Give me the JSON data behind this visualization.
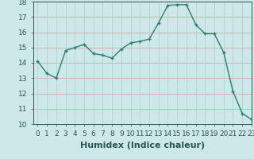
{
  "x": [
    0,
    1,
    2,
    3,
    4,
    5,
    6,
    7,
    8,
    9,
    10,
    11,
    12,
    13,
    14,
    15,
    16,
    17,
    18,
    19,
    20,
    21,
    22,
    23
  ],
  "y": [
    14.1,
    13.3,
    13.0,
    14.8,
    15.0,
    15.2,
    14.6,
    14.5,
    14.3,
    14.9,
    15.3,
    15.4,
    15.55,
    16.6,
    17.75,
    17.8,
    17.8,
    16.5,
    15.9,
    15.9,
    14.7,
    12.15,
    10.7,
    10.3
  ],
  "xlabel": "Humidex (Indice chaleur)",
  "ylim": [
    10,
    18
  ],
  "xlim": [
    -0.5,
    23
  ],
  "yticks": [
    10,
    11,
    12,
    13,
    14,
    15,
    16,
    17,
    18
  ],
  "xticks": [
    0,
    1,
    2,
    3,
    4,
    5,
    6,
    7,
    8,
    9,
    10,
    11,
    12,
    13,
    14,
    15,
    16,
    17,
    18,
    19,
    20,
    21,
    22,
    23
  ],
  "xtick_labels": [
    "0",
    "1",
    "2",
    "3",
    "4",
    "5",
    "6",
    "7",
    "8",
    "9",
    "10",
    "11",
    "12",
    "13",
    "14",
    "15",
    "16",
    "17",
    "18",
    "19",
    "20",
    "21",
    "22",
    "23"
  ],
  "line_color": "#2e7d6e",
  "marker": "+",
  "marker_size": 3,
  "bg_color": "#cce8e8",
  "grid_color_h": "#d4a0a0",
  "grid_color_v": "#b0cccc",
  "xlabel_fontsize": 8,
  "tick_fontsize": 6.5,
  "linewidth": 1.0
}
